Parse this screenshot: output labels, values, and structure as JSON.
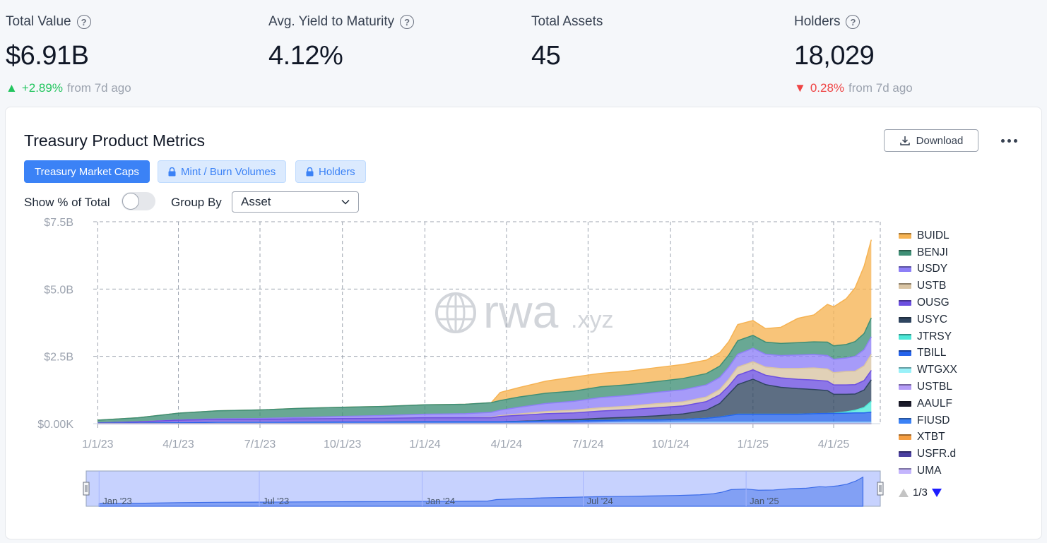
{
  "stats": [
    {
      "label": "Total Value",
      "value": "$6.91B",
      "has_help": true,
      "change": {
        "direction": "up",
        "arrow": "▲",
        "pct": "+2.89%",
        "suffix": "from 7d ago"
      }
    },
    {
      "label": "Avg. Yield to Maturity",
      "value": "4.12%",
      "has_help": true
    },
    {
      "label": "Total Assets",
      "value": "45",
      "has_help": false
    },
    {
      "label": "Holders",
      "value": "18,029",
      "has_help": true,
      "change": {
        "direction": "down",
        "arrow": "▼",
        "pct": "0.28%",
        "suffix": "from 7d ago"
      }
    }
  ],
  "help_glyph": "?",
  "card": {
    "title": "Treasury Product Metrics",
    "download_label": "Download",
    "tabs": [
      {
        "label": "Treasury Market Caps",
        "active": true,
        "locked": false
      },
      {
        "label": "Mint / Burn Volumes",
        "active": false,
        "locked": true
      },
      {
        "label": "Holders",
        "active": false,
        "locked": true
      }
    ],
    "toggle_label": "Show % of Total",
    "toggle_on": false,
    "group_by_label": "Group By",
    "group_by_value": "Asset"
  },
  "watermark": {
    "main": "rwa",
    "suffix": ".xyz"
  },
  "colors": {
    "accent": "#3b82f6",
    "up": "#22c55e",
    "down": "#ef4444"
  },
  "chart_data": {
    "type": "area",
    "stacked": true,
    "title": "",
    "xlabel": "",
    "ylabel": "",
    "x_ticks": [
      "1/1/23",
      "4/1/23",
      "7/1/23",
      "10/1/23",
      "1/1/24",
      "4/1/24",
      "7/1/24",
      "10/1/24",
      "1/1/25",
      "4/1/25"
    ],
    "y_ticks": [
      "$0.00K",
      "$2.5B",
      "$5.0B",
      "$7.5B"
    ],
    "ylim": [
      0,
      7.5
    ],
    "grid": true,
    "legend_position": "right",
    "x_dates": [
      "2023-01-01",
      "2023-02-15",
      "2023-04-01",
      "2023-05-15",
      "2023-07-01",
      "2023-08-15",
      "2023-10-01",
      "2023-11-15",
      "2024-01-01",
      "2024-02-15",
      "2024-03-15",
      "2024-03-25",
      "2024-04-15",
      "2024-05-15",
      "2024-06-15",
      "2024-07-15",
      "2024-08-15",
      "2024-09-15",
      "2024-10-15",
      "2024-11-10",
      "2024-11-25",
      "2024-12-05",
      "2024-12-15",
      "2025-01-01",
      "2025-01-15",
      "2025-02-01",
      "2025-02-20",
      "2025-03-10",
      "2025-03-25",
      "2025-04-01",
      "2025-04-15",
      "2025-04-25",
      "2025-05-05",
      "2025-05-13"
    ],
    "series": [
      {
        "name": "BUIDL",
        "color": "#f6b353",
        "values": [
          0,
          0,
          0,
          0,
          0,
          0,
          0,
          0,
          0,
          0,
          0,
          0.3,
          0.35,
          0.45,
          0.52,
          0.5,
          0.5,
          0.52,
          0.52,
          0.5,
          0.5,
          0.5,
          0.6,
          0.55,
          0.5,
          0.6,
          0.9,
          1.0,
          1.4,
          1.45,
          1.7,
          2.0,
          2.5,
          2.9
        ]
      },
      {
        "name": "BENJI",
        "color": "#3f8f76",
        "values": [
          0.1,
          0.15,
          0.25,
          0.3,
          0.32,
          0.34,
          0.34,
          0.34,
          0.35,
          0.35,
          0.36,
          0.36,
          0.38,
          0.38,
          0.38,
          0.4,
          0.4,
          0.4,
          0.42,
          0.42,
          0.42,
          0.45,
          0.5,
          0.48,
          0.45,
          0.45,
          0.46,
          0.47,
          0.5,
          0.5,
          0.5,
          0.55,
          0.6,
          0.7
        ]
      },
      {
        "name": "USDY",
        "color": "#8d7ff7",
        "values": [
          0,
          0,
          0.01,
          0.02,
          0.03,
          0.05,
          0.08,
          0.1,
          0.13,
          0.15,
          0.18,
          0.2,
          0.25,
          0.3,
          0.33,
          0.38,
          0.4,
          0.42,
          0.45,
          0.45,
          0.45,
          0.45,
          0.48,
          0.5,
          0.48,
          0.48,
          0.5,
          0.5,
          0.5,
          0.5,
          0.5,
          0.55,
          0.6,
          0.65
        ]
      },
      {
        "name": "USTB",
        "color": "#d9c4a3",
        "values": [
          0,
          0,
          0,
          0,
          0,
          0,
          0,
          0,
          0,
          0,
          0.02,
          0.03,
          0.05,
          0.08,
          0.1,
          0.12,
          0.13,
          0.15,
          0.15,
          0.17,
          0.2,
          0.25,
          0.3,
          0.3,
          0.3,
          0.35,
          0.4,
          0.45,
          0.45,
          0.45,
          0.5,
          0.5,
          0.55,
          0.6
        ]
      },
      {
        "name": "OUSG",
        "color": "#6c4fe0",
        "values": [
          0.02,
          0.05,
          0.1,
          0.12,
          0.12,
          0.13,
          0.13,
          0.14,
          0.15,
          0.15,
          0.15,
          0.2,
          0.22,
          0.25,
          0.25,
          0.27,
          0.28,
          0.3,
          0.3,
          0.32,
          0.32,
          0.3,
          0.35,
          0.35,
          0.35,
          0.35,
          0.35,
          0.35,
          0.35,
          0.35,
          0.35,
          0.35,
          0.35,
          0.35
        ]
      },
      {
        "name": "USYC",
        "color": "#2f4560",
        "values": [
          0,
          0,
          0,
          0,
          0,
          0,
          0,
          0,
          0,
          0,
          0,
          0,
          0.01,
          0.02,
          0.05,
          0.08,
          0.1,
          0.15,
          0.2,
          0.3,
          0.5,
          0.8,
          1.1,
          1.3,
          1.1,
          1.0,
          0.95,
          0.9,
          0.85,
          0.7,
          0.65,
          0.6,
          0.65,
          0.8
        ]
      },
      {
        "name": "JTRSY",
        "color": "#4ce8d8",
        "values": [
          0,
          0,
          0,
          0,
          0,
          0,
          0,
          0,
          0,
          0,
          0,
          0,
          0,
          0,
          0,
          0,
          0,
          0,
          0,
          0,
          0,
          0,
          0,
          0,
          0,
          0,
          0,
          0,
          0,
          0.01,
          0.05,
          0.1,
          0.2,
          0.4
        ]
      },
      {
        "name": "TBILL",
        "color": "#2563eb",
        "values": [
          0.01,
          0.02,
          0.03,
          0.03,
          0.03,
          0.04,
          0.05,
          0.05,
          0.06,
          0.06,
          0.06,
          0.06,
          0.07,
          0.08,
          0.08,
          0.09,
          0.1,
          0.1,
          0.11,
          0.15,
          0.2,
          0.25,
          0.3,
          0.3,
          0.3,
          0.3,
          0.3,
          0.32,
          0.33,
          0.33,
          0.34,
          0.35,
          0.35,
          0.38
        ]
      },
      {
        "name": "WTGXX",
        "color": "#9af1f9",
        "values": [
          0,
          0,
          0,
          0,
          0,
          0,
          0,
          0,
          0,
          0,
          0,
          0,
          0,
          0,
          0,
          0.01,
          0.02,
          0.02,
          0.03,
          0.03,
          0.03,
          0.03,
          0.03,
          0.03,
          0.03,
          0.03,
          0.03,
          0.03,
          0.03,
          0.03,
          0.03,
          0.03,
          0.03,
          0.03
        ]
      },
      {
        "name": "USTBL",
        "color": "#b59cf8",
        "values": [
          0,
          0,
          0,
          0.01,
          0.01,
          0.01,
          0.01,
          0.01,
          0.01,
          0.01,
          0.01,
          0.01,
          0.01,
          0.02,
          0.02,
          0.02,
          0.02,
          0.02,
          0.02,
          0.02,
          0.02,
          0.02,
          0.02,
          0.02,
          0.02,
          0.02,
          0.02,
          0.02,
          0.02,
          0.02,
          0.02,
          0.02,
          0.02,
          0.02
        ]
      },
      {
        "name": "AAULF",
        "color": "#1b1b2b",
        "values": [
          0,
          0,
          0,
          0,
          0,
          0,
          0,
          0,
          0,
          0,
          0,
          0,
          0,
          0,
          0,
          0,
          0,
          0,
          0,
          0,
          0,
          0,
          0,
          0,
          0,
          0,
          0,
          0,
          0,
          0,
          0,
          0,
          0,
          0
        ]
      },
      {
        "name": "FIUSD",
        "color": "#3b82f6",
        "values": [
          0,
          0,
          0,
          0,
          0,
          0,
          0,
          0,
          0,
          0,
          0,
          0,
          0,
          0,
          0,
          0,
          0,
          0,
          0,
          0,
          0,
          0,
          0,
          0,
          0,
          0,
          0,
          0,
          0,
          0,
          0,
          0,
          0,
          0
        ]
      },
      {
        "name": "XTBT",
        "color": "#f59e42",
        "values": [
          0,
          0,
          0,
          0,
          0,
          0,
          0,
          0,
          0,
          0,
          0,
          0,
          0,
          0,
          0,
          0,
          0,
          0,
          0,
          0,
          0,
          0,
          0,
          0,
          0,
          0,
          0,
          0,
          0,
          0,
          0,
          0,
          0,
          0
        ]
      },
      {
        "name": "USFR.d",
        "color": "#4a3fa0",
        "values": [
          0,
          0,
          0,
          0,
          0,
          0,
          0,
          0,
          0,
          0,
          0,
          0,
          0,
          0,
          0,
          0,
          0,
          0,
          0,
          0,
          0,
          0,
          0,
          0,
          0,
          0,
          0,
          0,
          0,
          0,
          0,
          0,
          0,
          0
        ]
      },
      {
        "name": "UMA",
        "color": "#c4b5fd",
        "values": [
          0,
          0,
          0,
          0,
          0,
          0,
          0,
          0,
          0,
          0,
          0,
          0,
          0,
          0,
          0,
          0,
          0,
          0,
          0,
          0,
          0,
          0,
          0,
          0,
          0,
          0,
          0,
          0,
          0,
          0,
          0,
          0,
          0,
          0
        ]
      }
    ],
    "navigator": {
      "labels": [
        "Jan '23",
        "Jul '23",
        "Jan '24",
        "Jul '24",
        "Jan '25"
      ]
    },
    "legend_page": "1/3"
  }
}
